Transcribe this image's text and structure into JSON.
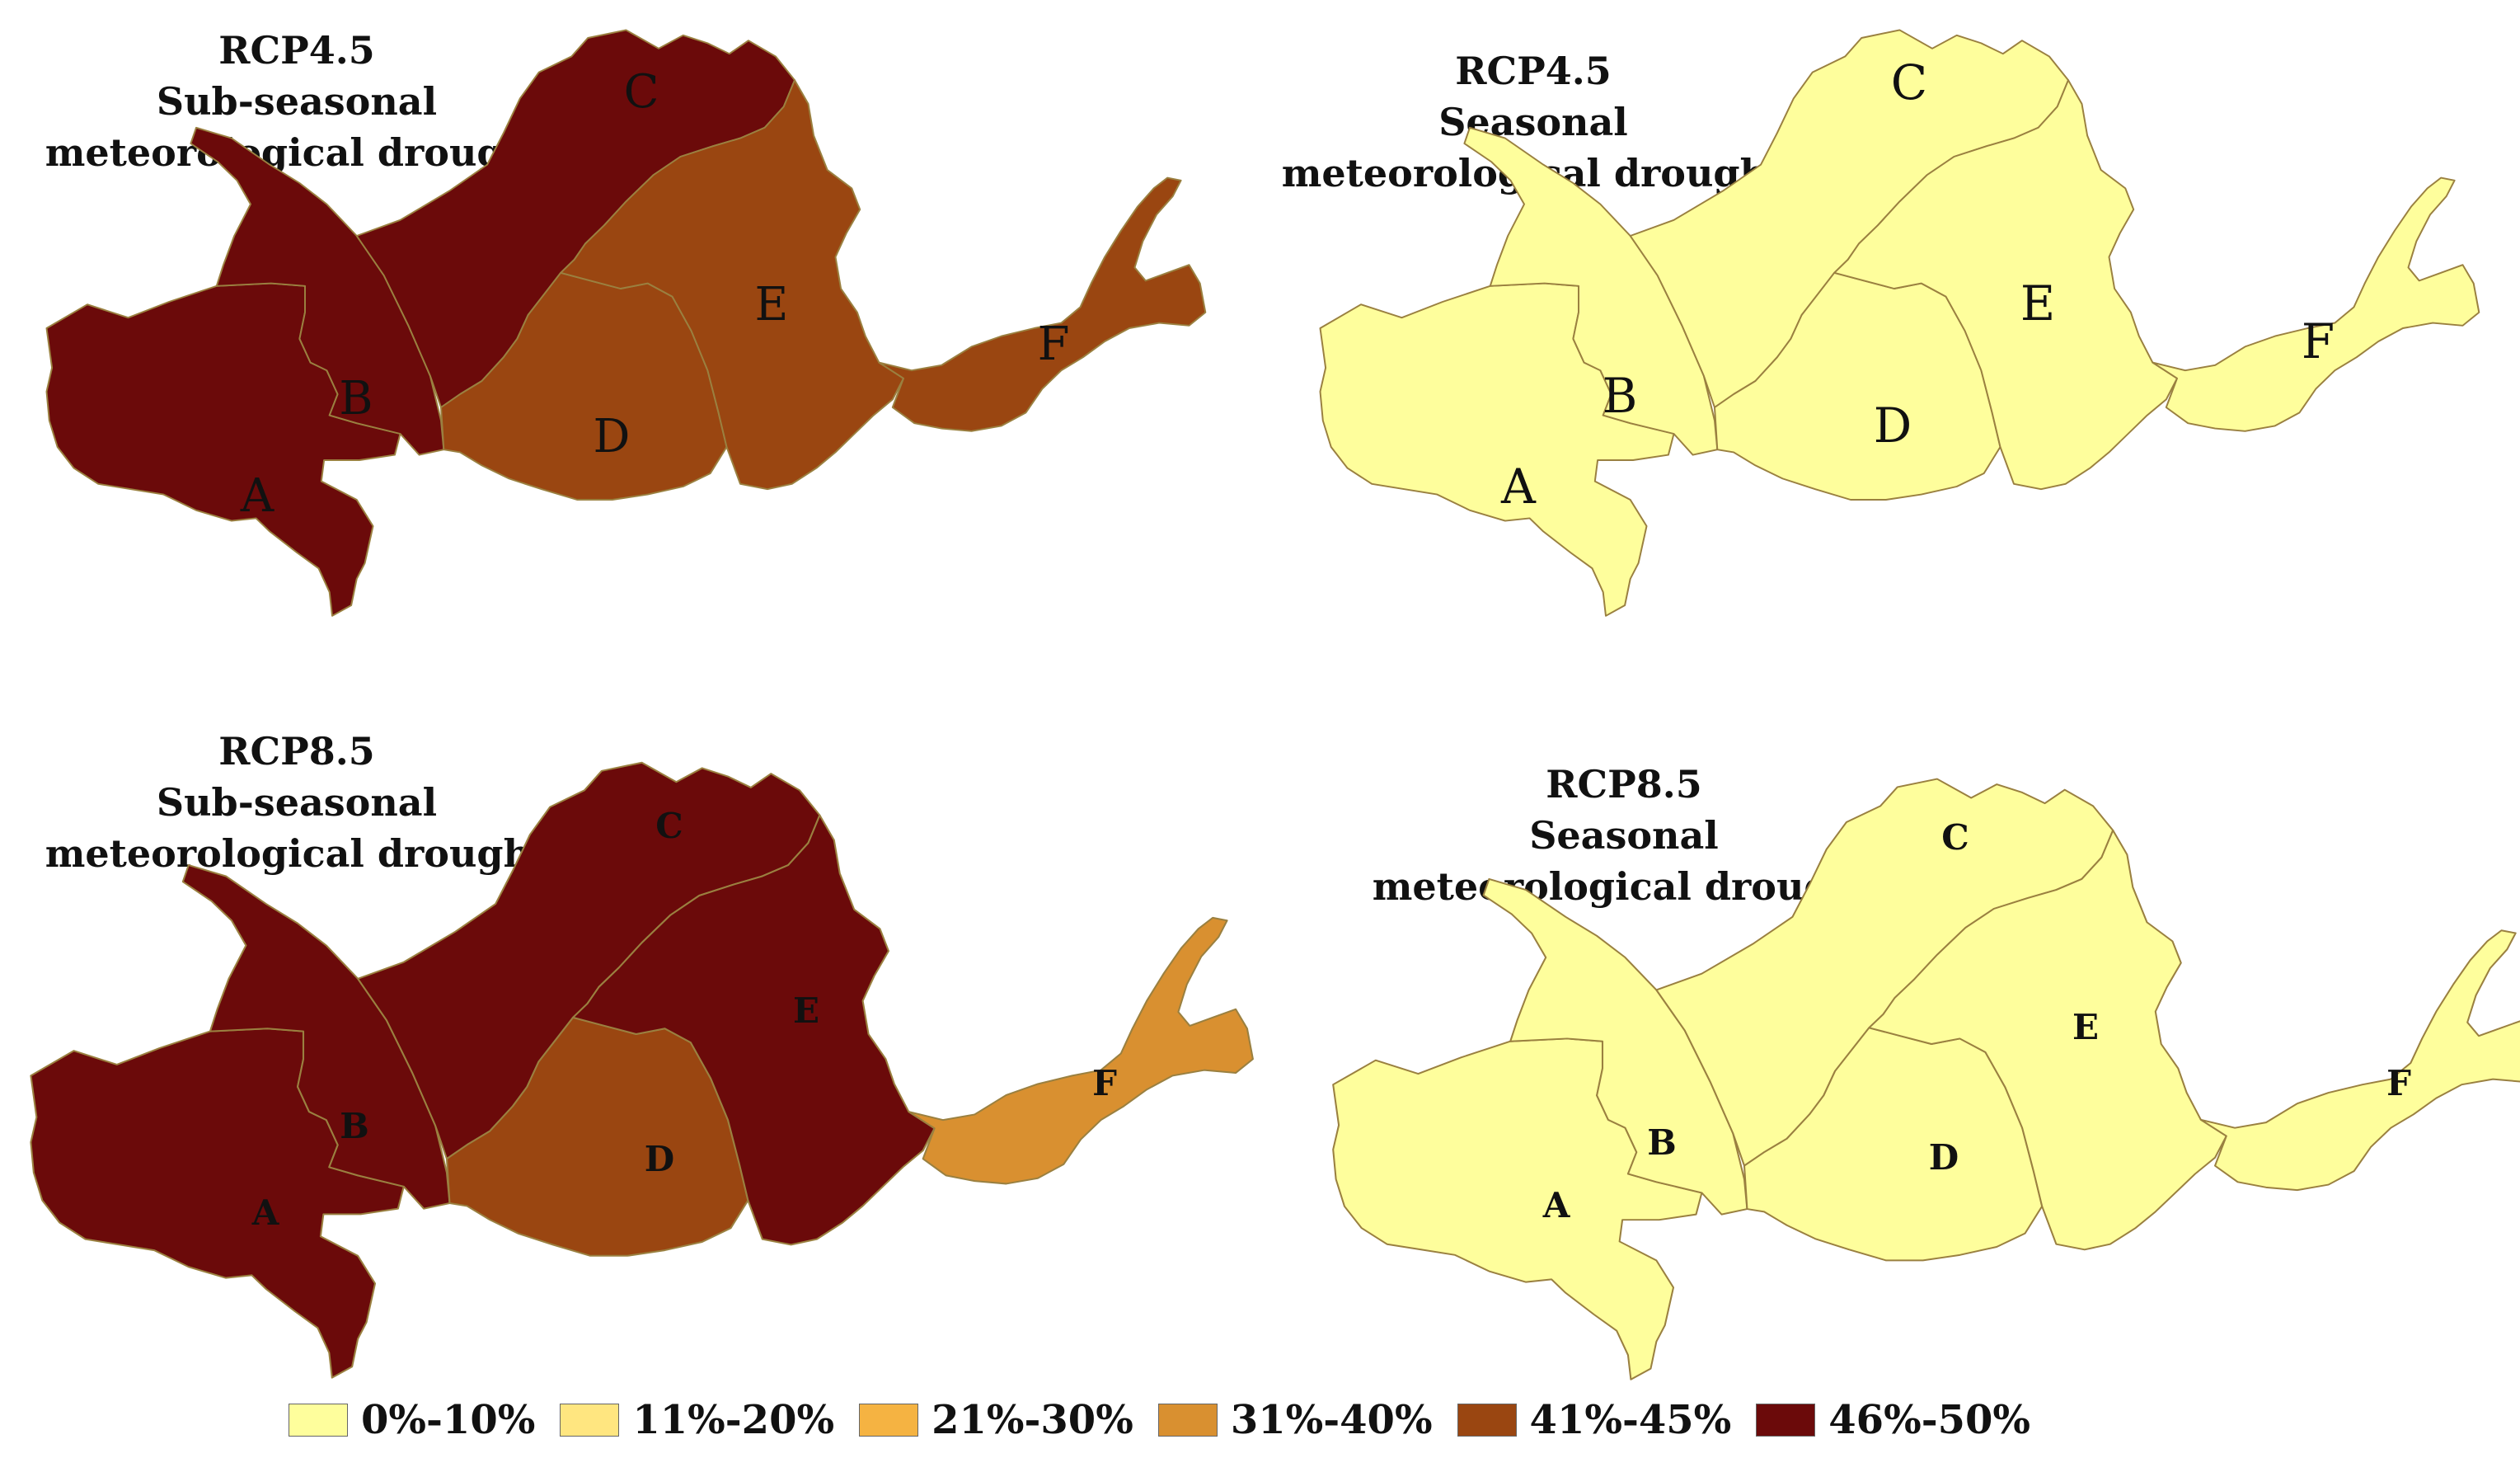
{
  "colors": {
    "c1": "#fefe9c",
    "c2": "#ffe680",
    "c3": "#f5b342",
    "c4": "#d99030",
    "c5": "#9a4611",
    "c6": "#6b0a0a",
    "border": "#9a8040"
  },
  "legend": [
    {
      "label": "0%-10%",
      "color": "#fefe9c"
    },
    {
      "label": "11%-20%",
      "color": "#ffe680"
    },
    {
      "label": "21%-30%",
      "color": "#f5b342"
    },
    {
      "label": "31%-40%",
      "color": "#d99030"
    },
    {
      "label": "41%-45%",
      "color": "#9a4611"
    },
    {
      "label": "46%-50%",
      "color": "#6b0a0a"
    }
  ],
  "panels": [
    {
      "title": [
        "RCP4.5",
        "Sub-seasonal",
        "meteorological drought"
      ],
      "regions": {
        "A": {
          "label": "A",
          "class": "46%-50%"
        },
        "B": {
          "label": "B",
          "class": "46%-50%"
        },
        "C": {
          "label": "C",
          "class": "46%-50%"
        },
        "D": {
          "label": "D",
          "class": "41%-45%"
        },
        "E": {
          "label": "E",
          "class": "41%-45%"
        },
        "F": {
          "label": "F",
          "class": "41%-45%"
        }
      }
    },
    {
      "title": [
        "RCP4.5",
        "Seasonal",
        "meteorological drought"
      ],
      "regions": {
        "A": {
          "label": "A",
          "class": "0%-10%"
        },
        "B": {
          "label": "B",
          "class": "0%-10%"
        },
        "C": {
          "label": "C",
          "class": "0%-10%"
        },
        "D": {
          "label": "D",
          "class": "0%-10%"
        },
        "E": {
          "label": "E",
          "class": "0%-10%"
        },
        "F": {
          "label": "F",
          "class": "0%-10%"
        }
      }
    },
    {
      "title": [
        "RCP8.5",
        "Sub-seasonal",
        "meteorological drought"
      ],
      "regions": {
        "A": {
          "label": "A",
          "class": "46%-50%"
        },
        "B": {
          "label": "B",
          "class": "46%-50%"
        },
        "C": {
          "label": "C",
          "class": "46%-50%"
        },
        "D": {
          "label": "D",
          "class": "41%-45%"
        },
        "E": {
          "label": "E",
          "class": "46%-50%"
        },
        "F": {
          "label": "F",
          "class": "31%-40%"
        }
      }
    },
    {
      "title": [
        "RCP8.5",
        "Seasonal",
        "meteorological drought"
      ],
      "regions": {
        "A": {
          "label": "A",
          "class": "0%-10%"
        },
        "B": {
          "label": "B",
          "class": "0%-10%"
        },
        "C": {
          "label": "C",
          "class": "0%-10%"
        },
        "D": {
          "label": "D",
          "class": "0%-10%"
        },
        "E": {
          "label": "E",
          "class": "0%-10%"
        },
        "F": {
          "label": "F",
          "class": "0%-10%"
        }
      }
    }
  ]
}
